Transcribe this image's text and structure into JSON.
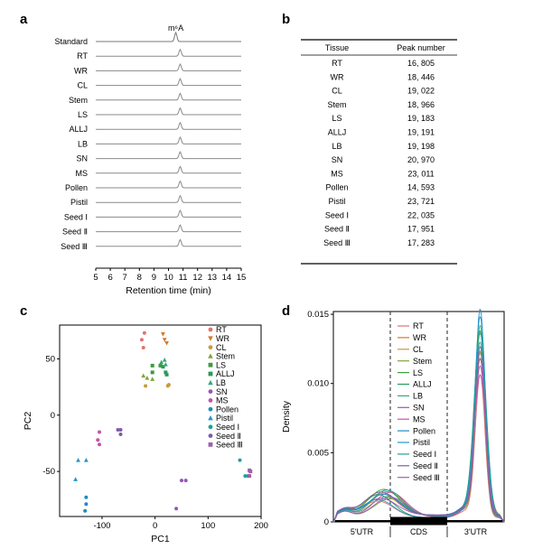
{
  "panel_labels": {
    "a": "a",
    "b": "b",
    "c": "c",
    "d": "d"
  },
  "chart_data": [
    {
      "panel": "a",
      "type": "line",
      "title": "",
      "peak_label": "m⁶A",
      "xlabel": "Retention time (min)",
      "xlim": [
        5,
        15
      ],
      "xticks": [
        5,
        6,
        7,
        8,
        9,
        10,
        11,
        12,
        13,
        14,
        15
      ],
      "peak_time_standard": 10.5,
      "peak_time_samples": 10.8,
      "series": [
        "Standard",
        "RT",
        "WR",
        "CL",
        "Stem",
        "LS",
        "ALLJ",
        "LB",
        "SN",
        "MS",
        "Pollen",
        "Pistil",
        "Seed Ⅰ",
        "Seed Ⅱ",
        "Seed Ⅲ"
      ]
    },
    {
      "panel": "b",
      "type": "table",
      "columns": [
        "Tissue",
        "Peak number"
      ],
      "rows": [
        [
          "RT",
          "16, 805"
        ],
        [
          "WR",
          "18, 446"
        ],
        [
          "CL",
          "19, 022"
        ],
        [
          "Stem",
          "18, 966"
        ],
        [
          "LS",
          "19, 183"
        ],
        [
          "ALLJ",
          "19, 191"
        ],
        [
          "LB",
          "19, 198"
        ],
        [
          "SN",
          "20, 970"
        ],
        [
          "MS",
          "23, 011"
        ],
        [
          "Pollen",
          "14, 593"
        ],
        [
          "Pistil",
          "23, 721"
        ],
        [
          "Seed Ⅰ",
          "22, 035"
        ],
        [
          "Seed Ⅱ",
          "17, 951"
        ],
        [
          "Seed Ⅲ",
          "17, 283"
        ]
      ]
    },
    {
      "panel": "c",
      "type": "scatter",
      "xlabel": "PC1",
      "ylabel": "PC2",
      "xlim": [
        -180,
        200
      ],
      "ylim": [
        -90,
        80
      ],
      "xticks": [
        -100,
        0,
        100,
        200
      ],
      "yticks": [
        -50,
        0,
        50
      ],
      "legend_position": "top-right",
      "series": [
        {
          "name": "RT",
          "color": "#E0736F",
          "marker": "circle",
          "points": [
            [
              -20,
              73
            ],
            [
              -25,
              67
            ],
            [
              -22,
              60
            ]
          ]
        },
        {
          "name": "WR",
          "color": "#D3782C",
          "marker": "triangle-down",
          "points": [
            [
              15,
              72
            ],
            [
              18,
              67
            ],
            [
              22,
              64
            ]
          ]
        },
        {
          "name": "CL",
          "color": "#C89B3A",
          "marker": "circle",
          "points": [
            [
              -18,
              26
            ],
            [
              24,
              26
            ],
            [
              26,
              27
            ]
          ]
        },
        {
          "name": "Stem",
          "color": "#80A33A",
          "marker": "triangle",
          "points": [
            [
              -15,
              33
            ],
            [
              -22,
              35
            ],
            [
              -5,
              32
            ]
          ]
        },
        {
          "name": "LS",
          "color": "#3E9B3D",
          "marker": "square",
          "points": [
            [
              -5,
              38
            ],
            [
              -5,
              44
            ],
            [
              10,
              44
            ]
          ]
        },
        {
          "name": "ALLJ",
          "color": "#2A9A5A",
          "marker": "square",
          "points": [
            [
              15,
              43
            ],
            [
              20,
              38
            ],
            [
              22,
              36
            ]
          ]
        },
        {
          "name": "LB",
          "color": "#33AA7A",
          "marker": "triangle",
          "points": [
            [
              12,
              47
            ],
            [
              18,
              49
            ],
            [
              20,
              45
            ]
          ]
        },
        {
          "name": "SN",
          "color": "#9A55B8",
          "marker": "circle",
          "points": [
            [
              50,
              -58
            ],
            [
              58,
              -58
            ],
            [
              40,
              -83
            ]
          ]
        },
        {
          "name": "MS",
          "color": "#C055A8",
          "marker": "circle",
          "points": [
            [
              -105,
              -15
            ],
            [
              -108,
              -22
            ],
            [
              -105,
              -26
            ]
          ]
        },
        {
          "name": "Pollen",
          "color": "#1C8CC4",
          "marker": "circle",
          "points": [
            [
              -130,
              -73
            ],
            [
              -130,
              -79
            ],
            [
              -132,
              -85
            ]
          ]
        },
        {
          "name": "Pistil",
          "color": "#2196C9",
          "marker": "triangle",
          "points": [
            [
              -145,
              -40
            ],
            [
              -130,
              -40
            ],
            [
              -150,
              -57
            ]
          ]
        },
        {
          "name": "Seed Ⅰ",
          "color": "#1E9FA0",
          "marker": "circle",
          "points": [
            [
              160,
              -40
            ],
            [
              170,
              -54
            ],
            [
              175,
              -54
            ]
          ]
        },
        {
          "name": "Seed Ⅱ",
          "color": "#7E5AA8",
          "marker": "circle",
          "points": [
            [
              -65,
              -13
            ],
            [
              -70,
              -13
            ],
            [
              -65,
              -17
            ]
          ]
        },
        {
          "name": "Seed Ⅲ",
          "color": "#A060A8",
          "marker": "square",
          "points": [
            [
              178,
              -49
            ],
            [
              178,
              -54
            ],
            [
              180,
              -50
            ]
          ]
        }
      ]
    },
    {
      "panel": "d",
      "type": "line",
      "ylabel": "Density",
      "ylim": [
        0,
        0.0152
      ],
      "yticks": [
        0,
        0.005,
        0.01,
        0.015
      ],
      "ytick_labels": [
        "0",
        "0.005",
        "0.010",
        "0.015"
      ],
      "regions": [
        "5'UTR",
        "CDS",
        "3'UTR"
      ],
      "xlim": [
        0,
        3
      ],
      "region_bounds": [
        1,
        2
      ],
      "series": [
        {
          "name": "RT",
          "color": "#E0736F",
          "peak": 0.0102
        },
        {
          "name": "WR",
          "color": "#D3782C",
          "peak": 0.0112
        },
        {
          "name": "CL",
          "color": "#C89B3A",
          "peak": 0.0115
        },
        {
          "name": "Stem",
          "color": "#80A33A",
          "peak": 0.0118
        },
        {
          "name": "LS",
          "color": "#3E9B3D",
          "peak": 0.013
        },
        {
          "name": "ALLJ",
          "color": "#2A9A5A",
          "peak": 0.0133
        },
        {
          "name": "LB",
          "color": "#33AA7A",
          "peak": 0.0136
        },
        {
          "name": "SN",
          "color": "#9A55B8",
          "peak": 0.0106
        },
        {
          "name": "MS",
          "color": "#C055A8",
          "peak": 0.0101
        },
        {
          "name": "Pollen",
          "color": "#1C8CC4",
          "peak": 0.0147
        },
        {
          "name": "Pistil",
          "color": "#2196C9",
          "peak": 0.0143
        },
        {
          "name": "Seed Ⅰ",
          "color": "#1E9FA0",
          "peak": 0.0124
        },
        {
          "name": "Seed Ⅱ",
          "color": "#7E5AA8",
          "peak": 0.012
        },
        {
          "name": "Seed Ⅲ",
          "color": "#A060A8",
          "peak": 0.0113
        }
      ]
    }
  ]
}
